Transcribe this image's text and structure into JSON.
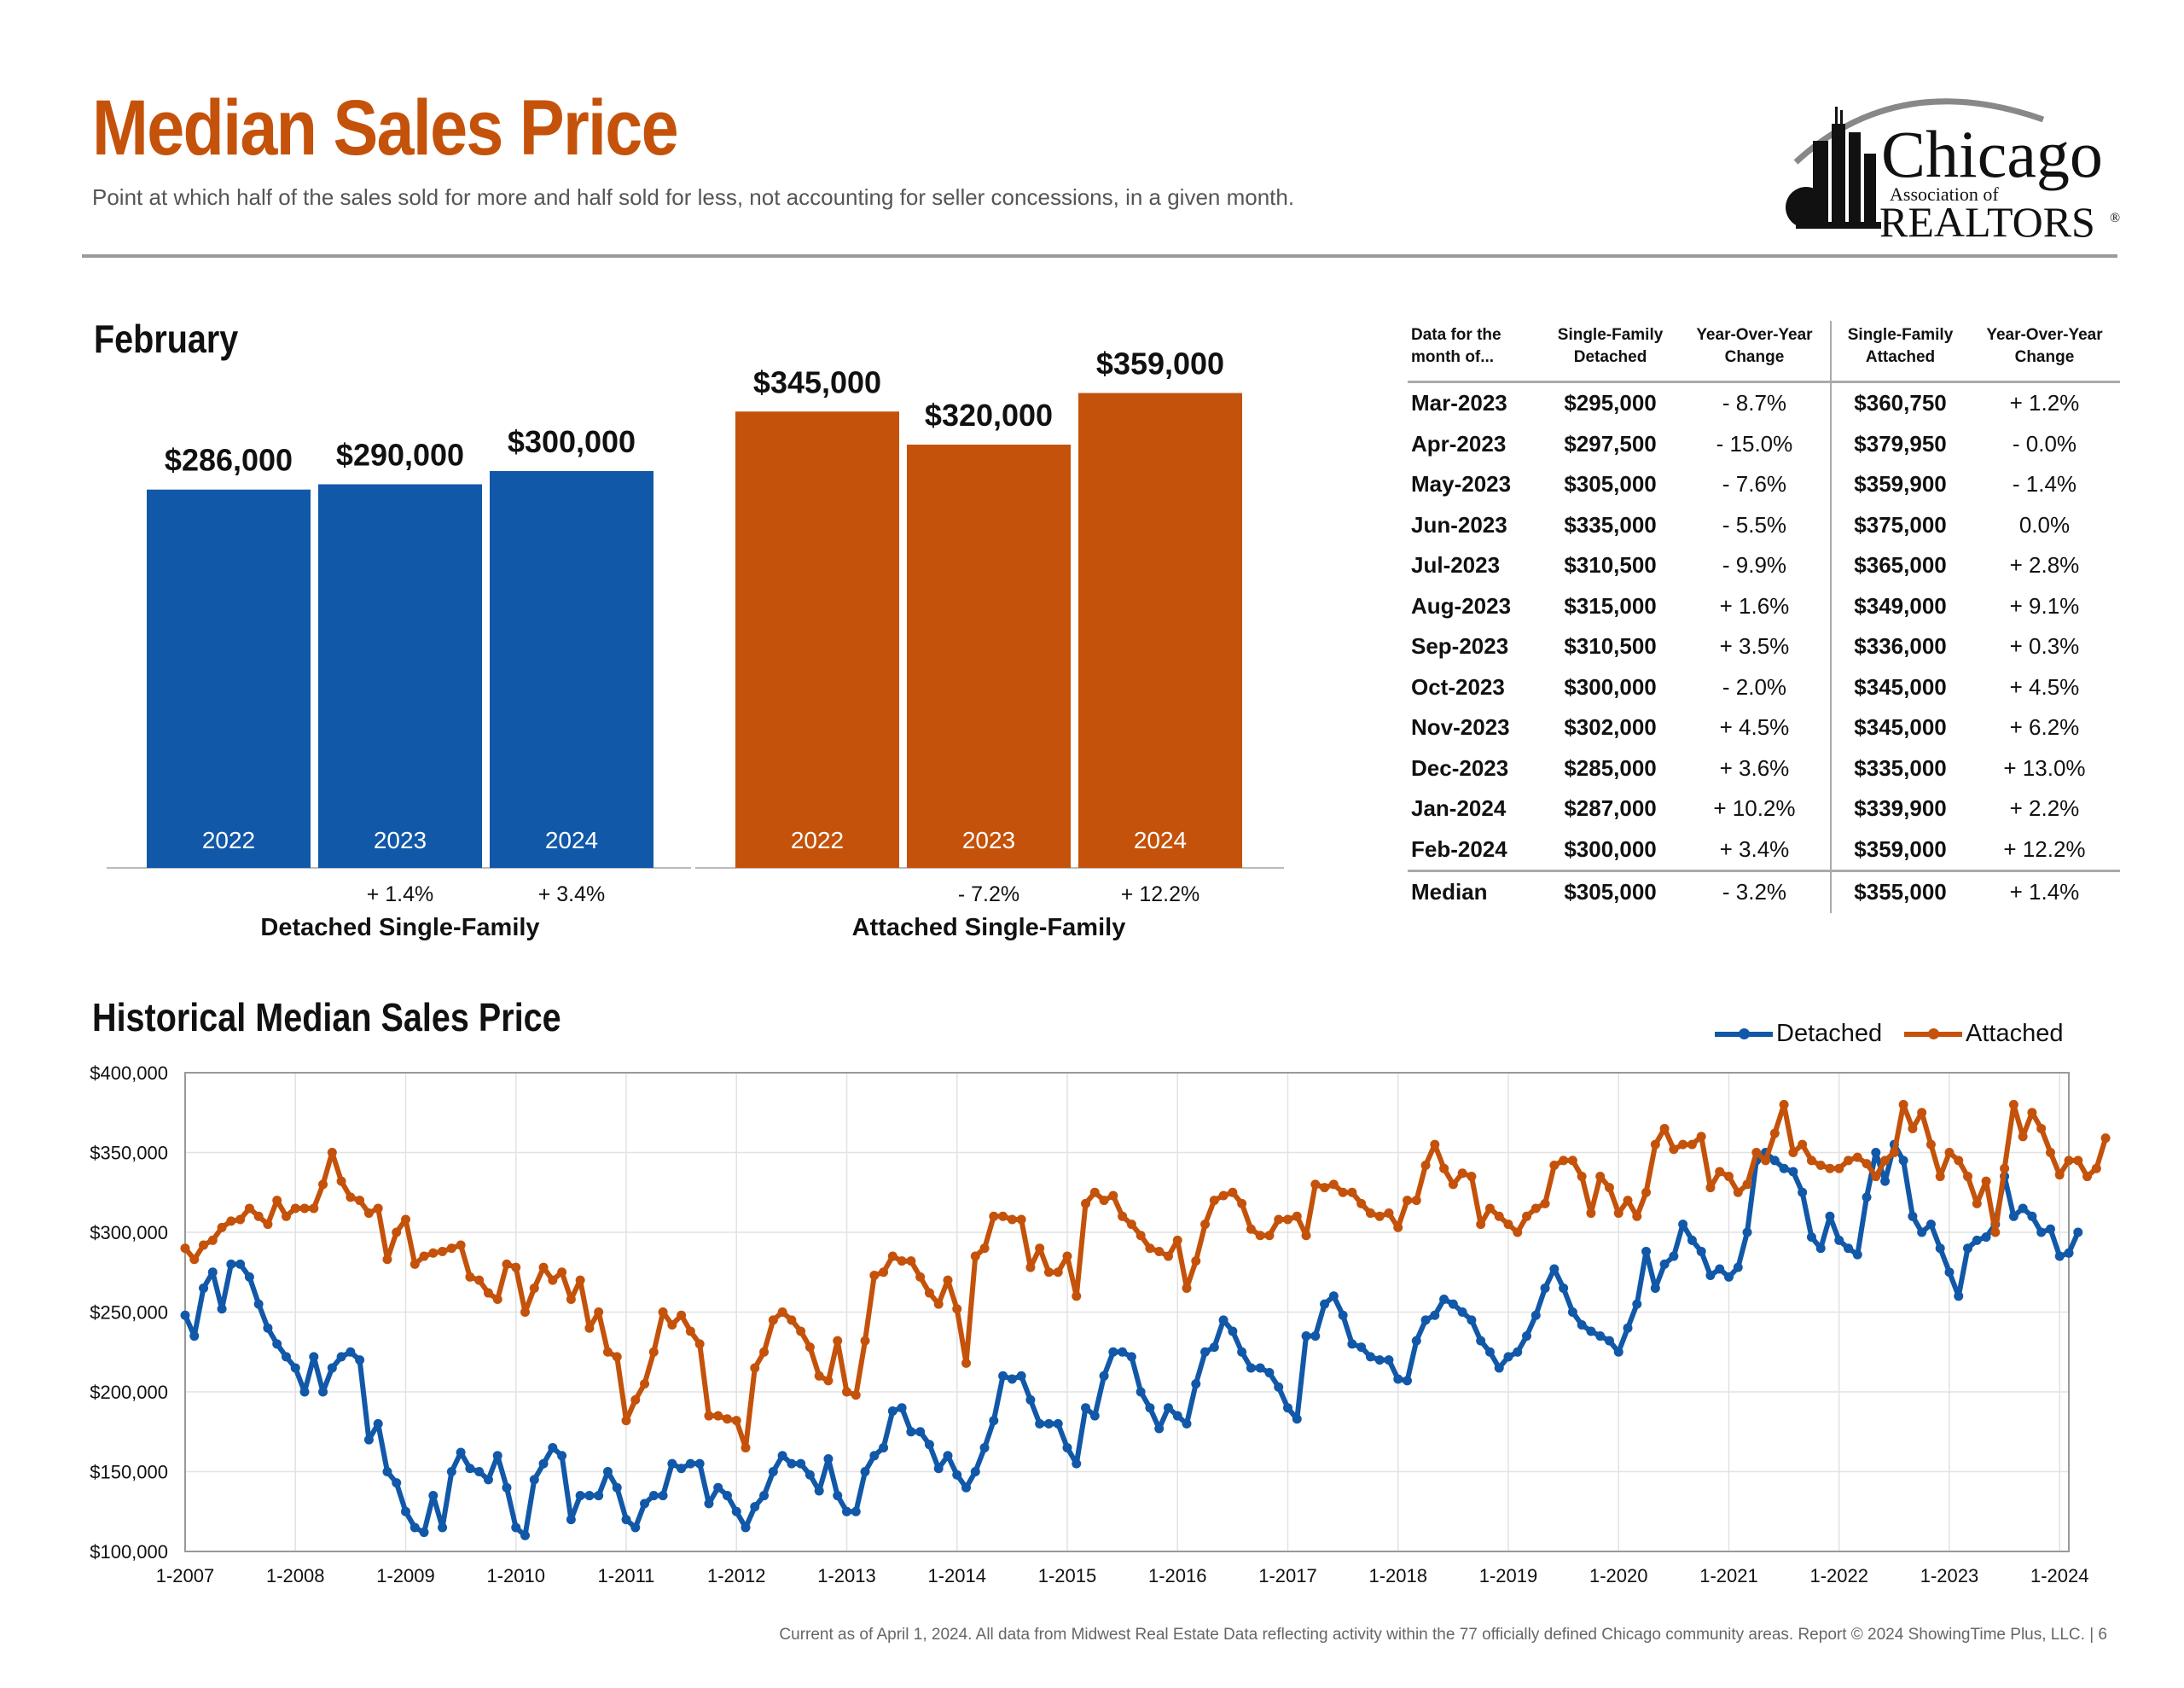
{
  "header": {
    "title": "Median Sales Price",
    "subtitle": "Point at which half of the sales sold for more and half sold for less, not accounting for seller concessions, in a given month."
  },
  "logo": {
    "line1": "Chicago",
    "line2": "Association of",
    "line3": "REALTORS",
    "mark": "®"
  },
  "colors": {
    "accent": "#c4520a",
    "detached": "#1158a8",
    "attached": "#c4520a"
  },
  "february_section": {
    "title": "February"
  },
  "chart_data": [
    {
      "type": "bar",
      "title": "February",
      "groups": [
        {
          "name": "Detached Single-Family",
          "categories": [
            "2022",
            "2023",
            "2024"
          ],
          "values": [
            286000,
            290000,
            300000
          ],
          "value_labels": [
            "$286,000",
            "$290,000",
            "$300,000"
          ],
          "changes": [
            "",
            "+ 1.4%",
            "+ 3.4%"
          ],
          "color": "#1158a8"
        },
        {
          "name": "Attached Single-Family",
          "categories": [
            "2022",
            "2023",
            "2024"
          ],
          "values": [
            345000,
            320000,
            359000
          ],
          "value_labels": [
            "$345,000",
            "$320,000",
            "$359,000"
          ],
          "changes": [
            "",
            "- 7.2%",
            "+ 12.2%"
          ],
          "color": "#c4520a"
        }
      ]
    },
    {
      "type": "line",
      "title": "Historical Median Sales Price",
      "x_start": "1-2007",
      "x_end": "2-2024",
      "x_ticks": [
        "1-2007",
        "1-2008",
        "1-2009",
        "1-2010",
        "1-2011",
        "1-2012",
        "1-2013",
        "1-2014",
        "1-2015",
        "1-2016",
        "1-2017",
        "1-2018",
        "1-2019",
        "1-2020",
        "1-2021",
        "1-2022",
        "1-2023",
        "1-2024"
      ],
      "y_ticks": [
        100000,
        150000,
        200000,
        250000,
        300000,
        350000,
        400000
      ],
      "y_tick_labels": [
        "$100,000",
        "$150,000",
        "$200,000",
        "$250,000",
        "$300,000",
        "$350,000",
        "$400,000"
      ],
      "ylim": [
        100000,
        400000
      ],
      "grid": true,
      "legend_position": "top-right",
      "series": [
        {
          "name": "Detached",
          "color": "#1158a8",
          "values": [
            248000,
            235000,
            265000,
            275000,
            252000,
            280000,
            280000,
            272000,
            255000,
            240000,
            230000,
            222000,
            215000,
            200000,
            222000,
            200000,
            215000,
            222000,
            225000,
            220000,
            170000,
            180000,
            150000,
            143000,
            125000,
            115000,
            112000,
            135000,
            115000,
            150000,
            162000,
            152000,
            150000,
            145000,
            160000,
            140000,
            115000,
            110000,
            145000,
            155000,
            165000,
            160000,
            120000,
            135000,
            135000,
            135000,
            150000,
            140000,
            120000,
            115000,
            130000,
            135000,
            135000,
            155000,
            152000,
            155000,
            155000,
            130000,
            140000,
            135000,
            125000,
            115000,
            128000,
            135000,
            150000,
            160000,
            155000,
            155000,
            148000,
            138000,
            158000,
            135000,
            125000,
            125000,
            150000,
            160000,
            165000,
            188000,
            190000,
            175000,
            175000,
            167000,
            152000,
            160000,
            148000,
            140000,
            150000,
            165000,
            182000,
            210000,
            208000,
            210000,
            195000,
            180000,
            180000,
            180000,
            165000,
            155000,
            190000,
            185000,
            210000,
            225000,
            225000,
            222000,
            200000,
            190000,
            177000,
            190000,
            185000,
            180000,
            205000,
            225000,
            228000,
            245000,
            238000,
            225000,
            215000,
            215000,
            212000,
            203000,
            190000,
            183000,
            235000,
            235000,
            255000,
            260000,
            248000,
            230000,
            228000,
            222000,
            220000,
            220000,
            208000,
            207000,
            232000,
            245000,
            248000,
            258000,
            255000,
            250000,
            245000,
            232000,
            225000,
            215000,
            222000,
            225000,
            235000,
            248000,
            265000,
            277000,
            265000,
            250000,
            242000,
            238000,
            235000,
            232000,
            225000,
            240000,
            255000,
            288000,
            265000,
            280000,
            285000,
            305000,
            295000,
            288000,
            273000,
            277000,
            272000,
            278000,
            300000,
            345000,
            350000,
            345000,
            340000,
            338000,
            325000,
            297000,
            290000,
            310000,
            295000,
            290000,
            286000,
            322000,
            350000,
            332000,
            355000,
            345000,
            310000,
            300000,
            305000,
            290000,
            275000,
            260000,
            290000,
            295000,
            297000,
            305000,
            335000,
            310000,
            315000,
            310000,
            300000,
            302000,
            285000,
            287000,
            300000
          ]
        },
        {
          "name": "Attached",
          "color": "#c4520a",
          "values": [
            290000,
            283000,
            292000,
            295000,
            303000,
            307000,
            308000,
            315000,
            310000,
            305000,
            320000,
            310000,
            315000,
            315000,
            315000,
            330000,
            350000,
            332000,
            322000,
            320000,
            312000,
            315000,
            283000,
            300000,
            308000,
            280000,
            285000,
            287000,
            288000,
            290000,
            292000,
            272000,
            270000,
            262000,
            258000,
            280000,
            278000,
            250000,
            265000,
            278000,
            270000,
            275000,
            258000,
            270000,
            240000,
            250000,
            225000,
            222000,
            182000,
            195000,
            205000,
            225000,
            250000,
            242000,
            248000,
            238000,
            230000,
            185000,
            185000,
            183000,
            182000,
            165000,
            215000,
            225000,
            245000,
            250000,
            245000,
            238000,
            228000,
            210000,
            207000,
            232000,
            200000,
            198000,
            232000,
            273000,
            275000,
            285000,
            282000,
            282000,
            272000,
            262000,
            255000,
            270000,
            252000,
            218000,
            285000,
            290000,
            310000,
            310000,
            308000,
            308000,
            278000,
            290000,
            275000,
            275000,
            285000,
            260000,
            318000,
            325000,
            320000,
            323000,
            310000,
            305000,
            298000,
            290000,
            288000,
            285000,
            295000,
            265000,
            282000,
            305000,
            320000,
            323000,
            325000,
            318000,
            302000,
            298000,
            298000,
            308000,
            308000,
            310000,
            298000,
            330000,
            328000,
            330000,
            325000,
            325000,
            318000,
            312000,
            310000,
            312000,
            303000,
            320000,
            320000,
            342000,
            355000,
            340000,
            330000,
            337000,
            335000,
            305000,
            315000,
            310000,
            305000,
            300000,
            310000,
            315000,
            318000,
            342000,
            345000,
            345000,
            335000,
            312000,
            335000,
            328000,
            312000,
            320000,
            310000,
            325000,
            355000,
            365000,
            352000,
            355000,
            355000,
            360000,
            328000,
            338000,
            335000,
            325000,
            330000,
            350000,
            345000,
            362000,
            380000,
            350000,
            355000,
            345000,
            342000,
            340000,
            340000,
            345000,
            347000,
            343000,
            335000,
            345000,
            350000,
            380000,
            365000,
            375000,
            355000,
            335000,
            350000,
            345000,
            335000,
            318000,
            332000,
            300000,
            340000,
            380000,
            360000,
            375000,
            365000,
            350000,
            336000,
            345000,
            345000,
            335000,
            340000,
            359000
          ]
        }
      ]
    }
  ],
  "table": {
    "headers": [
      "Data for the month of...",
      "Single-Family Detached",
      "Year-Over-Year Change",
      "Single-Family Attached",
      "Year-Over-Year Change"
    ],
    "rows": [
      [
        "Mar-2023",
        "$295,000",
        "- 8.7%",
        "$360,750",
        "+ 1.2%"
      ],
      [
        "Apr-2023",
        "$297,500",
        "- 15.0%",
        "$379,950",
        "- 0.0%"
      ],
      [
        "May-2023",
        "$305,000",
        "- 7.6%",
        "$359,900",
        "- 1.4%"
      ],
      [
        "Jun-2023",
        "$335,000",
        "- 5.5%",
        "$375,000",
        "0.0%"
      ],
      [
        "Jul-2023",
        "$310,500",
        "- 9.9%",
        "$365,000",
        "+ 2.8%"
      ],
      [
        "Aug-2023",
        "$315,000",
        "+ 1.6%",
        "$349,000",
        "+ 9.1%"
      ],
      [
        "Sep-2023",
        "$310,500",
        "+ 3.5%",
        "$336,000",
        "+ 0.3%"
      ],
      [
        "Oct-2023",
        "$300,000",
        "- 2.0%",
        "$345,000",
        "+ 4.5%"
      ],
      [
        "Nov-2023",
        "$302,000",
        "+ 4.5%",
        "$345,000",
        "+ 6.2%"
      ],
      [
        "Dec-2023",
        "$285,000",
        "+ 3.6%",
        "$335,000",
        "+ 13.0%"
      ],
      [
        "Jan-2024",
        "$287,000",
        "+ 10.2%",
        "$339,900",
        "+ 2.2%"
      ],
      [
        "Feb-2024",
        "$300,000",
        "+ 3.4%",
        "$359,000",
        "+ 12.2%"
      ]
    ],
    "median_row": [
      "Median",
      "$305,000",
      "- 3.2%",
      "$355,000",
      "+ 1.4%"
    ]
  },
  "historical_section": {
    "title": "Historical Median Sales Price"
  },
  "footer": {
    "text": "Current as of April 1, 2024.  All data from Midwest Real Estate Data reflecting activity within the 77 officially defined Chicago community areas. Report © 2024 ShowingTime Plus, LLC.  |  6"
  }
}
